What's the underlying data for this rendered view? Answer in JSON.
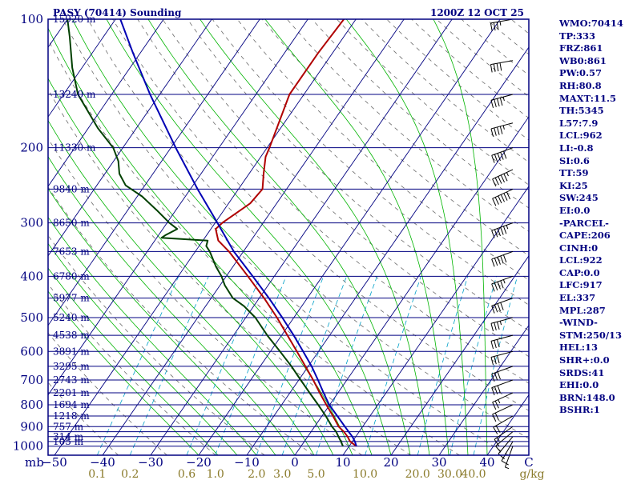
{
  "header": {
    "station": "PASY (70414) Sounding",
    "time": "1200Z 12 OCT 25"
  },
  "chart_data": {
    "type": "line",
    "title": "PASY (70414) Sounding",
    "subtitle": "1200Z 12 OCT 25",
    "pressure_unit": "mb",
    "mixing_ratio_unit": "g/kg",
    "pressure_ticks": [
      100,
      200,
      300,
      400,
      500,
      600,
      700,
      800,
      900,
      1000
    ],
    "isobars": [
      100,
      150,
      200,
      250,
      300,
      350,
      400,
      450,
      500,
      550,
      600,
      650,
      700,
      750,
      800,
      850,
      900,
      925,
      950,
      975,
      1000
    ],
    "height_labels": [
      {
        "p": 100,
        "label": "15920 m"
      },
      {
        "p": 150,
        "label": "13240 m"
      },
      {
        "p": 200,
        "label": "11330 m"
      },
      {
        "p": 250,
        "label": "9840 m"
      },
      {
        "p": 300,
        "label": "8650 m"
      },
      {
        "p": 350,
        "label": "7653 m"
      },
      {
        "p": 400,
        "label": "6780 m"
      },
      {
        "p": 450,
        "label": "5977 m"
      },
      {
        "p": 500,
        "label": "5240 m"
      },
      {
        "p": 550,
        "label": "4538 m"
      },
      {
        "p": 600,
        "label": "3891 m"
      },
      {
        "p": 650,
        "label": "3295 m"
      },
      {
        "p": 700,
        "label": "2743 m"
      },
      {
        "p": 750,
        "label": "2201 m"
      },
      {
        "p": 800,
        "label": "1694 m"
      },
      {
        "p": 850,
        "label": "1218 m"
      },
      {
        "p": 900,
        "label": "757 m"
      },
      {
        "p": 950,
        "label": "314 m"
      },
      {
        "p": 975,
        "label": "105 m"
      }
    ],
    "temperature_ticks": [
      "−50",
      "−40",
      "−30",
      "−20",
      "−10",
      "0",
      "10",
      "20",
      "30",
      "40",
      "C"
    ],
    "temperature_tick_values": [
      -50,
      -40,
      -30,
      -20,
      -10,
      0,
      10,
      20,
      30,
      40
    ],
    "mixing_ratio_ticks": [
      "0.1",
      "0.2",
      "0.6",
      "1.0",
      "2.0",
      "3.0",
      "5.0",
      "10.0",
      "20.0",
      "30.0",
      "40.0"
    ],
    "mixing_ratio_values": [
      0.1,
      0.2,
      0.6,
      1.0,
      2.0,
      3.0,
      5.0,
      10.0,
      20.0,
      30.0,
      40.0
    ],
    "surface_temperature": 11.5,
    "series": [
      {
        "kind": "temperature",
        "color": "#b00000",
        "points": [
          [
            1000,
            11.5
          ],
          [
            975,
            9.5
          ],
          [
            950,
            8.3
          ],
          [
            925,
            6.8
          ],
          [
            900,
            5.0
          ],
          [
            850,
            2.3
          ],
          [
            800,
            -0.7
          ],
          [
            750,
            -3.8
          ],
          [
            700,
            -7.0
          ],
          [
            650,
            -10.6
          ],
          [
            600,
            -14.5
          ],
          [
            550,
            -18.8
          ],
          [
            500,
            -23.5
          ],
          [
            450,
            -29.0
          ],
          [
            400,
            -35.5
          ],
          [
            350,
            -43.0
          ],
          [
            330,
            -46.8
          ],
          [
            310,
            -49.0
          ],
          [
            300,
            -48.5
          ],
          [
            270,
            -45.5
          ],
          [
            250,
            -45.0
          ],
          [
            230,
            -47.0
          ],
          [
            210,
            -49.0
          ],
          [
            200,
            -49.5
          ],
          [
            150,
            -53.0
          ],
          [
            120,
            -53.0
          ],
          [
            100,
            -52.5
          ]
        ]
      },
      {
        "kind": "dewpoint",
        "color": "#004000",
        "points": [
          [
            1000,
            8.7
          ],
          [
            975,
            7.6
          ],
          [
            950,
            6.4
          ],
          [
            925,
            5.2
          ],
          [
            900,
            3.6
          ],
          [
            850,
            0.8
          ],
          [
            800,
            -2.4
          ],
          [
            750,
            -5.9
          ],
          [
            700,
            -9.6
          ],
          [
            650,
            -13.5
          ],
          [
            600,
            -18.0
          ],
          [
            550,
            -23.0
          ],
          [
            500,
            -28.0
          ],
          [
            470,
            -32.0
          ],
          [
            450,
            -35.5
          ],
          [
            420,
            -39.0
          ],
          [
            400,
            -41.0
          ],
          [
            380,
            -43.5
          ],
          [
            350,
            -47.0
          ],
          [
            340,
            -48.5
          ],
          [
            330,
            -49.0
          ],
          [
            325,
            -59.0
          ],
          [
            320,
            -58.5
          ],
          [
            310,
            -57.0
          ],
          [
            300,
            -59.5
          ],
          [
            280,
            -64.0
          ],
          [
            260,
            -69.0
          ],
          [
            245,
            -74.0
          ],
          [
            230,
            -77.0
          ],
          [
            215,
            -79.0
          ],
          [
            200,
            -82.0
          ],
          [
            180,
            -88.0
          ],
          [
            150,
            -97.0
          ],
          [
            130,
            -102.0
          ],
          [
            110,
            -107.0
          ],
          [
            100,
            -110.0
          ]
        ]
      },
      {
        "kind": "parcel",
        "color": "#0000b4",
        "points": [
          [
            1000,
            11.5
          ],
          [
            975,
            10.5
          ],
          [
            950,
            9.3
          ],
          [
            925,
            7.8
          ],
          [
            900,
            6.3
          ],
          [
            850,
            3.2
          ],
          [
            800,
            -0.1
          ],
          [
            750,
            -3.0
          ],
          [
            700,
            -6.0
          ],
          [
            650,
            -9.3
          ],
          [
            600,
            -13.2
          ],
          [
            550,
            -17.5
          ],
          [
            500,
            -22.4
          ],
          [
            450,
            -28.0
          ],
          [
            400,
            -34.5
          ],
          [
            350,
            -42.0
          ],
          [
            300,
            -49.5
          ],
          [
            250,
            -58.5
          ],
          [
            200,
            -69.0
          ],
          [
            150,
            -82.0
          ],
          [
            120,
            -91.5
          ],
          [
            100,
            -99.0
          ]
        ]
      }
    ],
    "wind_barbs": [
      [
        1000,
        200,
        5
      ],
      [
        975,
        210,
        8
      ],
      [
        950,
        220,
        10
      ],
      [
        925,
        230,
        12
      ],
      [
        900,
        235,
        15
      ],
      [
        850,
        240,
        20
      ],
      [
        800,
        245,
        22
      ],
      [
        750,
        245,
        25
      ],
      [
        700,
        250,
        28
      ],
      [
        650,
        250,
        30
      ],
      [
        600,
        255,
        30
      ],
      [
        550,
        255,
        32
      ],
      [
        500,
        255,
        35
      ],
      [
        450,
        250,
        40
      ],
      [
        400,
        250,
        45
      ],
      [
        350,
        250,
        50
      ],
      [
        300,
        250,
        55
      ],
      [
        250,
        245,
        60
      ],
      [
        225,
        245,
        55
      ],
      [
        200,
        250,
        50
      ],
      [
        175,
        255,
        45
      ],
      [
        150,
        255,
        45
      ],
      [
        125,
        260,
        40
      ],
      [
        100,
        260,
        35
      ]
    ],
    "grid": true
  },
  "indices": [
    "WMO:70414",
    "TP:333",
    "FRZ:861",
    "WB0:861",
    "PW:0.57",
    "RH:80.8",
    "MAXT:11.5",
    "TH:5345",
    "L57:7.9",
    "LCL:962",
    "LI:-0.8",
    "SI:0.6",
    "TT:59",
    "KI:25",
    "SW:245",
    "EI:0.0",
    "-PARCEL-",
    "CAPE:206",
    "CINH:0",
    "LCL:922",
    "CAP:0.0",
    "LFC:917",
    "EL:337",
    "MPL:287",
    "-WIND-",
    "STM:250/13",
    "HEL:13",
    "SHR+:0.0",
    "SRDS:41",
    "EHI:0.0",
    "BRN:148.0",
    "BSHR:1"
  ],
  "colors": {
    "isobar": "#000080",
    "isotherm": "#000080",
    "dry_adiabat": "#6a6a6a",
    "moist_adiabat": "#00b400",
    "mixing_ratio": "#00a0c8",
    "frame": "#000080",
    "wind": "#000000"
  }
}
